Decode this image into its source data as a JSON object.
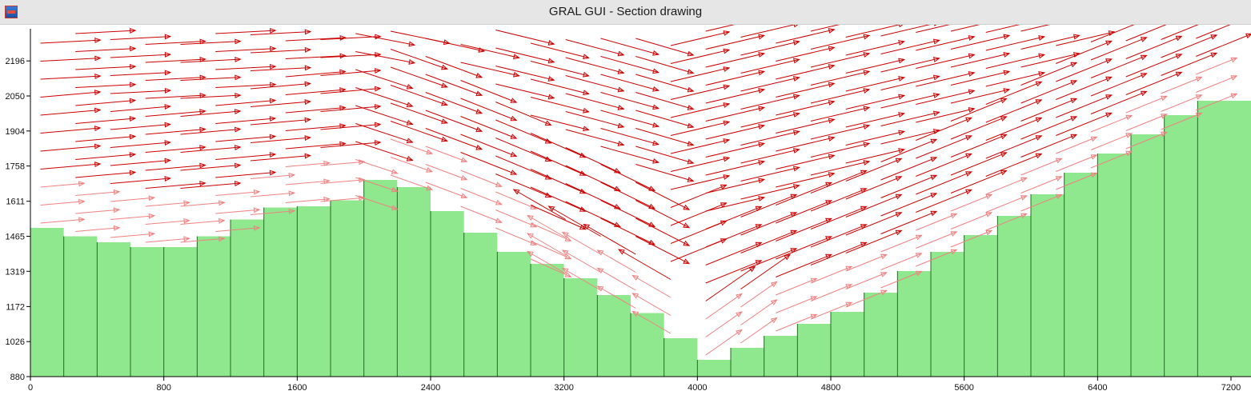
{
  "window": {
    "title": "GRAL GUI - Section drawing",
    "icon": "gral-app-icon"
  },
  "chart_data": {
    "type": "area",
    "description_note": "",
    "xlim": [
      0,
      7200
    ],
    "ylim": [
      880,
      2330
    ],
    "x_ticks": [
      "0",
      "800",
      "1600",
      "2400",
      "3200",
      "4000",
      "4800",
      "5600",
      "6400",
      "7200"
    ],
    "y_ticks": [
      "880",
      "1026",
      "1172",
      "1319",
      "1465",
      "1611",
      "1758",
      "1904",
      "2050",
      "2196"
    ],
    "grid": false,
    "colors": {
      "terrain": "#90e88e",
      "terrain_edge": "#1f6b1f",
      "arrows_dark": "#cc0000",
      "arrows_light": "#f08080",
      "axis": "#000000"
    },
    "terrain": {
      "x": [
        0,
        200,
        400,
        600,
        800,
        1000,
        1200,
        1400,
        1600,
        1800,
        2000,
        2200,
        2400,
        2600,
        2800,
        3000,
        3200,
        3400,
        3600,
        3800,
        4000,
        4200,
        4400,
        4600,
        4800,
        5000,
        5200,
        5400,
        5600,
        5800,
        6000,
        6200,
        6400,
        6600,
        6800,
        7000
      ],
      "y": [
        1500,
        1465,
        1440,
        1420,
        1420,
        1465,
        1535,
        1585,
        1590,
        1615,
        1700,
        1670,
        1570,
        1480,
        1400,
        1350,
        1290,
        1220,
        1145,
        1040,
        950,
        1000,
        1050,
        1100,
        1150,
        1230,
        1320,
        1400,
        1470,
        1550,
        1640,
        1730,
        1810,
        1890,
        1970,
        2030
      ]
    }
  }
}
